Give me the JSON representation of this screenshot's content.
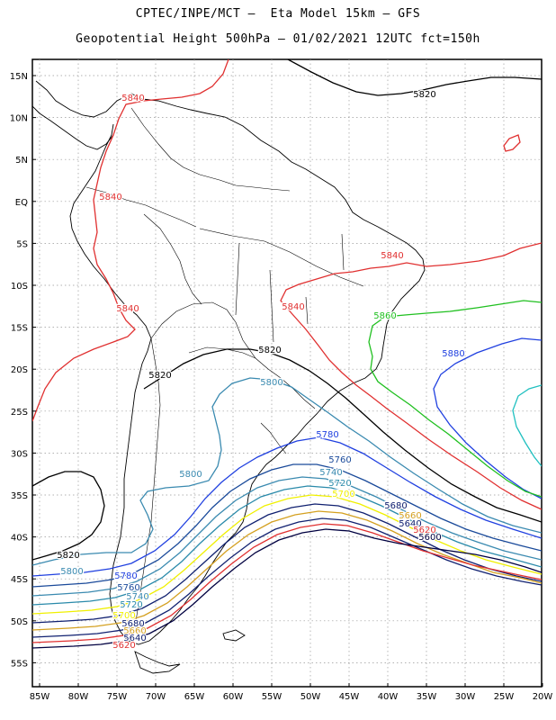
{
  "header": {
    "line1": "CPTEC/INPE/MCT –  Eta Model 15km – GFS",
    "line2": "Geopotential Height 500hPa – 01/02/2021 12UTC fct=150h"
  },
  "axes": {
    "lat_labels": [
      "15N",
      "10N",
      "5N",
      "EQ",
      "5S",
      "10S",
      "15S",
      "20S",
      "25S",
      "30S",
      "35S",
      "40S",
      "45S",
      "50S",
      "55S"
    ],
    "lon_labels": [
      "85W",
      "80W",
      "75W",
      "70W",
      "65W",
      "60W",
      "55W",
      "50W",
      "45W",
      "40W",
      "35W",
      "30W",
      "25W",
      "20W"
    ]
  },
  "colors": {
    "c5600": "#000040",
    "c5620": "#e03030",
    "c5640": "#102070",
    "c5660": "#d4a020",
    "c5680": "#102070",
    "c5700": "#f0f000",
    "c5720": "#2a8aaa",
    "c5740": "#3a8ab0",
    "c5760": "#1a4a9a",
    "c5780": "#2040e0",
    "c5800": "#3a8ab0",
    "c5820": "#000000",
    "c5840": "#e03030",
    "c5860": "#20c020",
    "c5880": "#2040e0",
    "c5900": "#20c0c0"
  },
  "contour_labels": [
    {
      "text": "5820",
      "color": "#000000"
    },
    {
      "text": "5840",
      "color": "#e03030"
    },
    {
      "text": "5840",
      "color": "#e03030"
    },
    {
      "text": "5840",
      "color": "#e03030"
    },
    {
      "text": "5840",
      "color": "#e03030"
    },
    {
      "text": "5840",
      "color": "#e03030"
    },
    {
      "text": "5860",
      "color": "#20c020"
    },
    {
      "text": "5880",
      "color": "#2040e0"
    },
    {
      "text": "5820",
      "color": "#000000"
    },
    {
      "text": "5820",
      "color": "#000000"
    },
    {
      "text": "5800",
      "color": "#3a8ab0"
    },
    {
      "text": "5780",
      "color": "#2040e0"
    },
    {
      "text": "5800",
      "color": "#3a8ab0"
    },
    {
      "text": "5760",
      "color": "#1a4a9a"
    },
    {
      "text": "5740",
      "color": "#3a8ab0"
    },
    {
      "text": "5720",
      "color": "#2a8aaa"
    },
    {
      "text": "5700",
      "color": "#f0f000"
    },
    {
      "text": "5680",
      "color": "#102070"
    },
    {
      "text": "5660",
      "color": "#d4a020"
    },
    {
      "text": "5640",
      "color": "#102070"
    },
    {
      "text": "5620",
      "color": "#e03030"
    },
    {
      "text": "5600",
      "color": "#000040"
    },
    {
      "text": "5820",
      "color": "#000000"
    },
    {
      "text": "5800",
      "color": "#3a8ab0"
    },
    {
      "text": "5780",
      "color": "#2040e0"
    },
    {
      "text": "5760",
      "color": "#1a4a9a"
    },
    {
      "text": "5740",
      "color": "#3a8ab0"
    },
    {
      "text": "5720",
      "color": "#2a8aaa"
    },
    {
      "text": "5700",
      "color": "#f0f000"
    },
    {
      "text": "5680",
      "color": "#102070"
    },
    {
      "text": "5660",
      "color": "#d4a020"
    },
    {
      "text": "5640",
      "color": "#102070"
    },
    {
      "text": "5620",
      "color": "#e03030"
    }
  ]
}
